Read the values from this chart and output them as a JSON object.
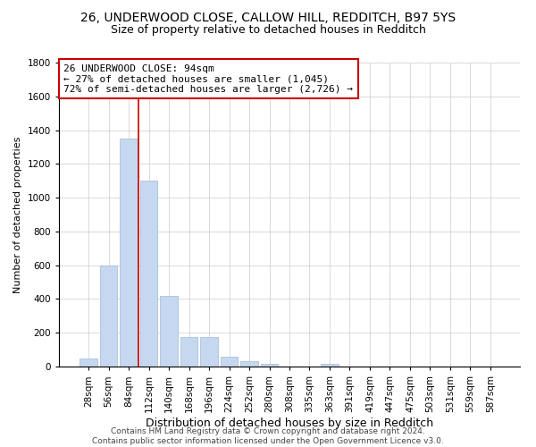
{
  "title1": "26, UNDERWOOD CLOSE, CALLOW HILL, REDDITCH, B97 5YS",
  "title2": "Size of property relative to detached houses in Redditch",
  "xlabel": "Distribution of detached houses by size in Redditch",
  "ylabel": "Number of detached properties",
  "categories": [
    "28sqm",
    "56sqm",
    "84sqm",
    "112sqm",
    "140sqm",
    "168sqm",
    "196sqm",
    "224sqm",
    "252sqm",
    "280sqm",
    "308sqm",
    "335sqm",
    "363sqm",
    "391sqm",
    "419sqm",
    "447sqm",
    "475sqm",
    "503sqm",
    "531sqm",
    "559sqm",
    "587sqm"
  ],
  "values": [
    50,
    600,
    1350,
    1100,
    420,
    175,
    175,
    60,
    30,
    15,
    0,
    0,
    15,
    0,
    0,
    0,
    0,
    0,
    0,
    0,
    0
  ],
  "bar_color": "#c5d8f0",
  "bar_edge_color": "#a0b8d8",
  "vline_color": "#cc0000",
  "vline_x_index": 2.5,
  "annotation_text": "26 UNDERWOOD CLOSE: 94sqm\n← 27% of detached houses are smaller (1,045)\n72% of semi-detached houses are larger (2,726) →",
  "annotation_box_color": "#cc0000",
  "ylim": [
    0,
    1800
  ],
  "yticks": [
    0,
    200,
    400,
    600,
    800,
    1000,
    1200,
    1400,
    1600,
    1800
  ],
  "grid_color": "#cccccc",
  "background_color": "#ffffff",
  "footer": "Contains HM Land Registry data © Crown copyright and database right 2024.\nContains public sector information licensed under the Open Government Licence v3.0.",
  "title1_fontsize": 10,
  "title2_fontsize": 9,
  "xlabel_fontsize": 9,
  "ylabel_fontsize": 8,
  "tick_fontsize": 7.5,
  "annotation_fontsize": 8,
  "footer_fontsize": 6.5
}
